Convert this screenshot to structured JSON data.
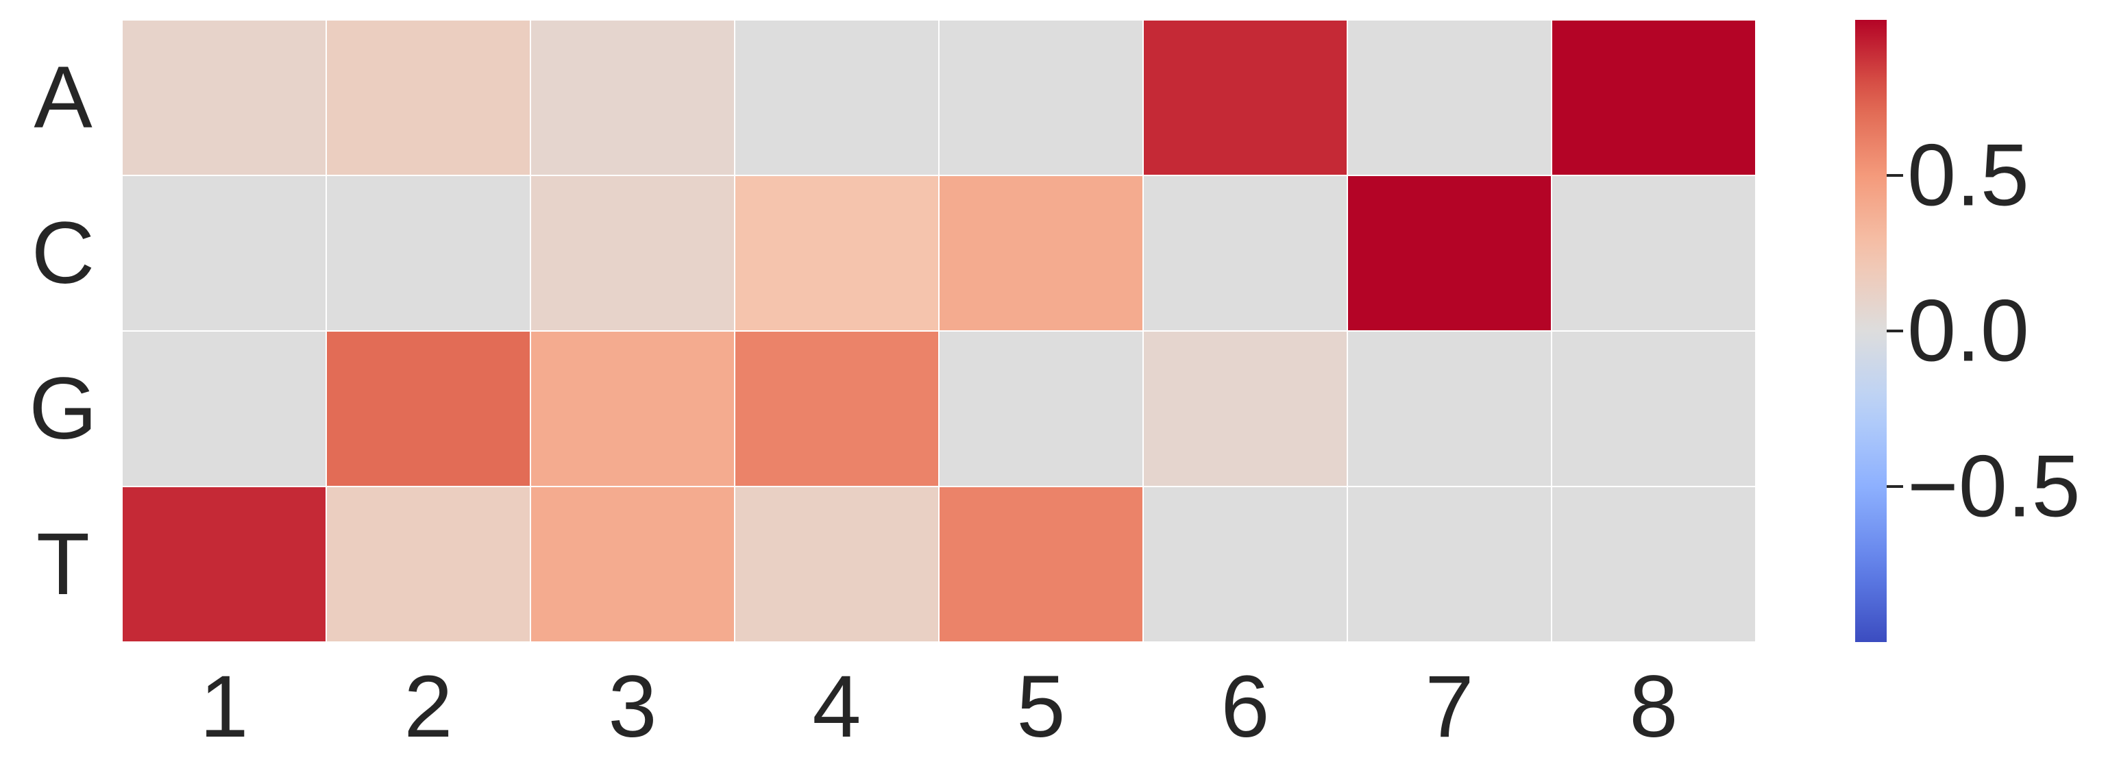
{
  "chart_data": {
    "type": "heatmap",
    "title": "",
    "xlabel": "",
    "ylabel": "",
    "x_categories": [
      "1",
      "2",
      "3",
      "4",
      "5",
      "6",
      "7",
      "8"
    ],
    "y_categories": [
      "A",
      "C",
      "G",
      "T"
    ],
    "values": [
      [
        0.1,
        0.15,
        0.08,
        0.0,
        0.0,
        0.9,
        0.0,
        1.0
      ],
      [
        0.0,
        0.0,
        0.1,
        0.25,
        0.4,
        0.0,
        1.0,
        0.0
      ],
      [
        0.0,
        0.7,
        0.4,
        0.6,
        0.0,
        0.08,
        0.0,
        0.0
      ],
      [
        0.9,
        0.15,
        0.4,
        0.13,
        0.6,
        0.0,
        0.0,
        0.0
      ]
    ],
    "colormap": "coolwarm",
    "vmin": -1.0,
    "vmax": 1.0,
    "colorbar": {
      "ticks": [
        0.5,
        0.0,
        -0.5
      ],
      "tick_labels": [
        "0.5",
        "0.0",
        "−0.5"
      ]
    },
    "cell_border_color": "#ffffff",
    "grid": false,
    "legend": "colorbar-right"
  }
}
